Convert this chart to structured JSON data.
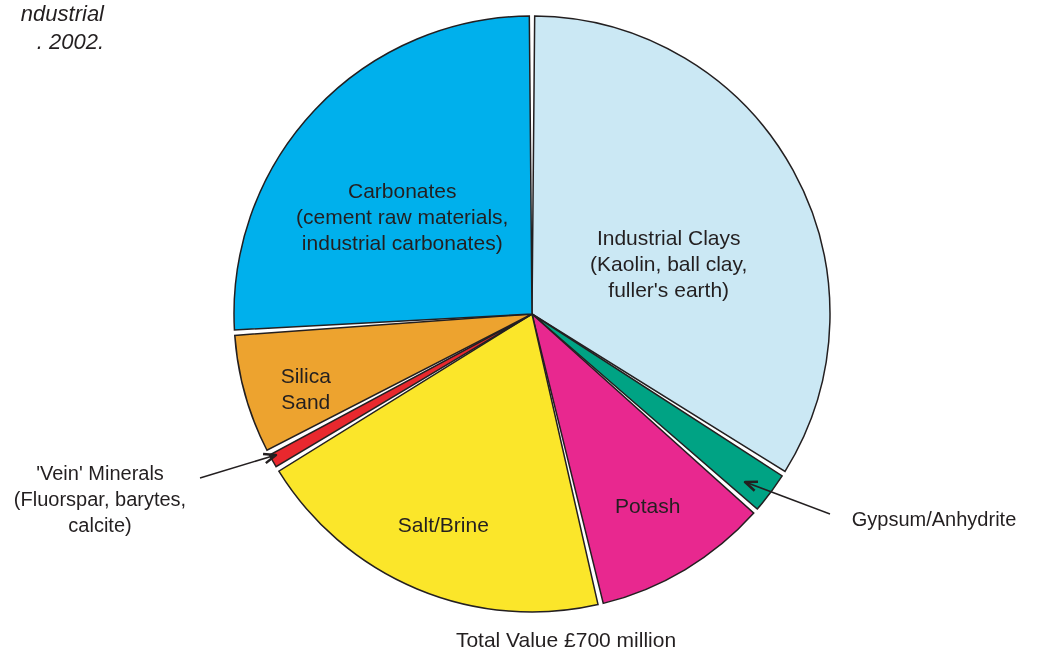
{
  "chart_data": {
    "type": "pie",
    "title": "ndustrial\n. 2002.",
    "categories": [
      "Industrial Clays\n(Kaolin, ball clay,\nfuller's earth)",
      "Gypsum/Anhydrite",
      "Potash",
      "Salt/Brine",
      "'Vein' Minerals\n(Fluorspar, barytes,\ncalcite)",
      "Silica\nSand",
      "Carbonates\n(cement raw materials,\nindustrial carbonates)"
    ],
    "values": [
      34,
      2.5,
      9.8,
      20,
      1,
      6.7,
      26
    ],
    "colors": [
      "#cbe8f4",
      "#00a384",
      "#e8288f",
      "#fbe62a",
      "#e8282e",
      "#eda32f",
      "#00b0ec"
    ],
    "annotations": [
      "Total Value £700 million"
    ]
  }
}
